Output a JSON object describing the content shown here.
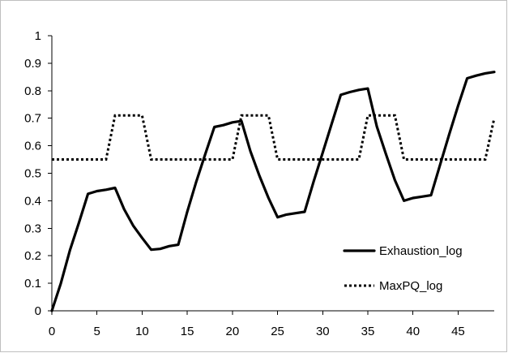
{
  "chart_data": {
    "type": "line",
    "title": "",
    "xlabel": "",
    "ylabel": "",
    "xlim": [
      0,
      49
    ],
    "ylim": [
      0,
      1
    ],
    "x_ticks": [
      0,
      5,
      10,
      15,
      20,
      25,
      30,
      35,
      40,
      45
    ],
    "y_ticks": [
      0,
      0.1,
      0.2,
      0.3,
      0.4,
      0.5,
      0.6,
      0.7,
      0.8,
      0.9,
      1
    ],
    "x_tick_labels": [
      "0",
      "5",
      "10",
      "15",
      "20",
      "25",
      "30",
      "35",
      "40",
      "45"
    ],
    "y_tick_labels": [
      "0",
      "0.1",
      "0.2",
      "0.3",
      "0.4",
      "0.5",
      "0.6",
      "0.7",
      "0.8",
      "0.9",
      "1"
    ],
    "grid": false,
    "legend_position": "bottom-right",
    "x": [
      0,
      1,
      2,
      3,
      4,
      5,
      6,
      7,
      8,
      9,
      10,
      11,
      12,
      13,
      14,
      15,
      16,
      17,
      18,
      19,
      20,
      21,
      22,
      23,
      24,
      25,
      26,
      27,
      28,
      29,
      30,
      31,
      32,
      33,
      34,
      35,
      36,
      37,
      38,
      39,
      40,
      41,
      42,
      43,
      44,
      45,
      46,
      47,
      48,
      49
    ],
    "series": [
      {
        "name": "Exhaustion_log",
        "style": "solid",
        "color": "#000000",
        "values": [
          0.0,
          0.1,
          0.22,
          0.32,
          0.425,
          0.435,
          0.44,
          0.447,
          0.37,
          0.31,
          0.265,
          0.222,
          0.225,
          0.235,
          0.24,
          0.36,
          0.47,
          0.57,
          0.668,
          0.675,
          0.685,
          0.69,
          0.58,
          0.49,
          0.41,
          0.34,
          0.35,
          0.355,
          0.36,
          0.47,
          0.575,
          0.68,
          0.785,
          0.795,
          0.803,
          0.808,
          0.67,
          0.57,
          0.475,
          0.4,
          0.41,
          0.415,
          0.42,
          0.53,
          0.64,
          0.745,
          0.845,
          0.855,
          0.863,
          0.868
        ]
      },
      {
        "name": "MaxPQ_log",
        "style": "dotted",
        "color": "#000000",
        "values": [
          0.55,
          0.55,
          0.55,
          0.55,
          0.55,
          0.55,
          0.55,
          0.71,
          0.71,
          0.71,
          0.71,
          0.55,
          0.55,
          0.55,
          0.55,
          0.55,
          0.55,
          0.55,
          0.55,
          0.55,
          0.55,
          0.71,
          0.71,
          0.71,
          0.71,
          0.55,
          0.55,
          0.55,
          0.55,
          0.55,
          0.55,
          0.55,
          0.55,
          0.55,
          0.55,
          0.71,
          0.71,
          0.71,
          0.71,
          0.55,
          0.55,
          0.55,
          0.55,
          0.55,
          0.55,
          0.55,
          0.55,
          0.55,
          0.55,
          0.7
        ]
      }
    ]
  }
}
